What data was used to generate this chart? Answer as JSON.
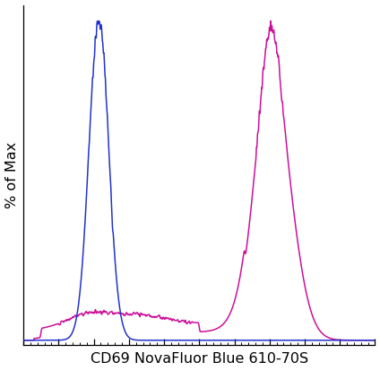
{
  "title": "",
  "xlabel": "CD69 NovaFluor Blue 610-70S",
  "ylabel": "% of Max",
  "xlim": [
    0,
    1000
  ],
  "ylim": [
    -0.015,
    1.05
  ],
  "background_color": "#ffffff",
  "plot_bg_color": "#ffffff",
  "blue_color": "#2233cc",
  "magenta_color": "#cc1199",
  "xlabel_fontsize": 11.5,
  "ylabel_fontsize": 11.5,
  "figsize": [
    4.24,
    4.13
  ],
  "dpi": 100
}
